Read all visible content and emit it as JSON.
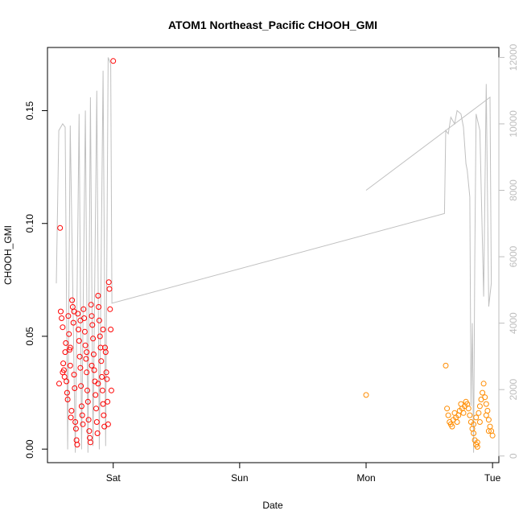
{
  "chart_data": {
    "type": "scatter",
    "title": "ATOM1 Northeast_Pacific CHOOH_GMI",
    "xlabel": "Date",
    "ylabel": "CHOOH_GMI",
    "x_ticks": [
      {
        "label": "Sat",
        "day": 1
      },
      {
        "label": "Sun",
        "day": 2
      },
      {
        "label": "Mon",
        "day": 3
      },
      {
        "label": "Tue",
        "day": 4
      }
    ],
    "xlim_days": [
      0.48,
      4.05
    ],
    "ylim": [
      -0.006,
      0.178
    ],
    "y_ticks": [
      "0.00",
      "0.05",
      "0.10",
      "0.15"
    ],
    "y_tick_values": [
      0,
      0.05,
      0.1,
      0.15
    ],
    "y2lim": [
      -200,
      12300
    ],
    "y2_ticks": [
      "0",
      "2000",
      "4000",
      "6000",
      "8000",
      "10000",
      "12000"
    ],
    "y2_tick_values": [
      0,
      2000,
      4000,
      6000,
      8000,
      10000,
      12000
    ],
    "grid": false,
    "colors": {
      "series1": "#ff0000",
      "series2": "#ff8c00",
      "altitude": "#c0c0c0"
    },
    "series": [
      {
        "points": [
          [
            0.58,
            0.098
          ],
          [
            0.572,
            0.029
          ],
          [
            0.585,
            0.061
          ],
          [
            0.592,
            0.058
          ],
          [
            0.6,
            0.054
          ],
          [
            0.605,
            0.038
          ],
          [
            0.61,
            0.035
          ],
          [
            0.615,
            0.032
          ],
          [
            0.62,
            0.043
          ],
          [
            0.625,
            0.047
          ],
          [
            0.63,
            0.03
          ],
          [
            0.635,
            0.025
          ],
          [
            0.64,
            0.022
          ],
          [
            0.645,
            0.059
          ],
          [
            0.65,
            0.051
          ],
          [
            0.655,
            0.044
          ],
          [
            0.66,
            0.037
          ],
          [
            0.665,
            0.014
          ],
          [
            0.67,
            0.017
          ],
          [
            0.675,
            0.066
          ],
          [
            0.68,
            0.063
          ],
          [
            0.685,
            0.056
          ],
          [
            0.69,
            0.033
          ],
          [
            0.695,
            0.027
          ],
          [
            0.7,
            0.012
          ],
          [
            0.705,
            0.009
          ],
          [
            0.71,
            0.004
          ],
          [
            0.715,
            0.002
          ],
          [
            0.72,
            0.06
          ],
          [
            0.725,
            0.053
          ],
          [
            0.73,
            0.048
          ],
          [
            0.735,
            0.041
          ],
          [
            0.74,
            0.036
          ],
          [
            0.745,
            0.028
          ],
          [
            0.75,
            0.019
          ],
          [
            0.755,
            0.015
          ],
          [
            0.76,
            0.011
          ],
          [
            0.765,
            0.062
          ],
          [
            0.77,
            0.058
          ],
          [
            0.775,
            0.052
          ],
          [
            0.78,
            0.046
          ],
          [
            0.785,
            0.04
          ],
          [
            0.79,
            0.034
          ],
          [
            0.795,
            0.026
          ],
          [
            0.8,
            0.021
          ],
          [
            0.805,
            0.013
          ],
          [
            0.81,
            0.008
          ],
          [
            0.815,
            0.005
          ],
          [
            0.82,
            0.003
          ],
          [
            0.825,
            0.064
          ],
          [
            0.83,
            0.059
          ],
          [
            0.835,
            0.055
          ],
          [
            0.84,
            0.049
          ],
          [
            0.845,
            0.042
          ],
          [
            0.85,
            0.035
          ],
          [
            0.855,
            0.03
          ],
          [
            0.86,
            0.024
          ],
          [
            0.865,
            0.018
          ],
          [
            0.87,
            0.012
          ],
          [
            0.875,
            0.007
          ],
          [
            0.88,
            0.068
          ],
          [
            0.885,
            0.063
          ],
          [
            0.89,
            0.057
          ],
          [
            0.895,
            0.05
          ],
          [
            0.9,
            0.045
          ],
          [
            0.905,
            0.039
          ],
          [
            0.91,
            0.032
          ],
          [
            0.915,
            0.026
          ],
          [
            0.92,
            0.02
          ],
          [
            0.925,
            0.015
          ],
          [
            0.93,
            0.01
          ],
          [
            0.935,
            0.045
          ],
          [
            0.94,
            0.043
          ],
          [
            0.945,
            0.034
          ],
          [
            0.95,
            0.031
          ],
          [
            0.955,
            0.021
          ],
          [
            0.96,
            0.011
          ],
          [
            0.965,
            0.074
          ],
          [
            0.97,
            0.071
          ],
          [
            0.975,
            0.062
          ],
          [
            0.98,
            0.053
          ],
          [
            0.985,
            0.026
          ],
          [
            1.0,
            0.172
          ],
          [
            0.6,
            0.034
          ],
          [
            0.66,
            0.045
          ],
          [
            0.69,
            0.061
          ],
          [
            0.74,
            0.057
          ],
          [
            0.79,
            0.043
          ],
          [
            0.83,
            0.037
          ],
          [
            0.88,
            0.029
          ],
          [
            0.92,
            0.053
          ]
        ]
      },
      {
        "points": [
          [
            3.0,
            0.024
          ],
          [
            3.63,
            0.037
          ],
          [
            3.64,
            0.018
          ],
          [
            3.65,
            0.015
          ],
          [
            3.66,
            0.012
          ],
          [
            3.67,
            0.011
          ],
          [
            3.68,
            0.01
          ],
          [
            3.69,
            0.013
          ],
          [
            3.7,
            0.016
          ],
          [
            3.71,
            0.014
          ],
          [
            3.72,
            0.012
          ],
          [
            3.73,
            0.015
          ],
          [
            3.74,
            0.017
          ],
          [
            3.75,
            0.02
          ],
          [
            3.76,
            0.018
          ],
          [
            3.77,
            0.016
          ],
          [
            3.78,
            0.019
          ],
          [
            3.79,
            0.021
          ],
          [
            3.8,
            0.02
          ],
          [
            3.81,
            0.018
          ],
          [
            3.82,
            0.015
          ],
          [
            3.83,
            0.012
          ],
          [
            3.84,
            0.009
          ],
          [
            3.85,
            0.007
          ],
          [
            3.86,
            0.004
          ],
          [
            3.87,
            0.002
          ],
          [
            3.88,
            0.001
          ],
          [
            3.89,
            0.016
          ],
          [
            3.9,
            0.019
          ],
          [
            3.91,
            0.022
          ],
          [
            3.92,
            0.025
          ],
          [
            3.93,
            0.029
          ],
          [
            3.94,
            0.023
          ],
          [
            3.95,
            0.02
          ],
          [
            3.96,
            0.017
          ],
          [
            3.97,
            0.013
          ],
          [
            3.98,
            0.01
          ],
          [
            3.99,
            0.008
          ],
          [
            4.0,
            0.006
          ],
          [
            3.85,
            0.011
          ],
          [
            3.87,
            0.014
          ],
          [
            3.9,
            0.012
          ],
          [
            3.95,
            0.015
          ],
          [
            3.97,
            0.008
          ],
          [
            3.88,
            0.003
          ]
        ]
      }
    ],
    "altitude_line": [
      [
        0.55,
        5200
      ],
      [
        0.57,
        9800
      ],
      [
        0.6,
        10000
      ],
      [
        0.62,
        9900
      ],
      [
        0.64,
        200
      ],
      [
        0.66,
        9950
      ],
      [
        0.7,
        100
      ],
      [
        0.73,
        10300
      ],
      [
        0.75,
        200
      ],
      [
        0.78,
        10400
      ],
      [
        0.8,
        100
      ],
      [
        0.82,
        10800
      ],
      [
        0.84,
        300
      ],
      [
        0.87,
        11000
      ],
      [
        0.89,
        200
      ],
      [
        0.92,
        11600
      ],
      [
        0.94,
        300
      ],
      [
        0.96,
        12000
      ],
      [
        0.98,
        11800
      ],
      [
        0.99,
        4600
      ],
      [
        3.62,
        7300
      ],
      [
        3.63,
        9800
      ],
      [
        3.65,
        9700
      ],
      [
        3.67,
        10200
      ],
      [
        3.7,
        10000
      ],
      [
        3.72,
        10400
      ],
      [
        3.75,
        10300
      ],
      [
        3.77,
        9900
      ],
      [
        3.79,
        8800
      ],
      [
        3.8,
        8600
      ],
      [
        3.82,
        7800
      ],
      [
        3.83,
        1500
      ],
      [
        3.84,
        4000
      ],
      [
        3.85,
        100
      ],
      [
        3.86,
        6000
      ],
      [
        3.87,
        10300
      ],
      [
        3.9,
        9800
      ],
      [
        3.93,
        4800
      ],
      [
        3.95,
        11200
      ],
      [
        3.97,
        4500
      ],
      [
        3.99,
        5200
      ],
      [
        3.98,
        10800
      ],
      [
        3.0,
        8000
      ]
    ]
  }
}
